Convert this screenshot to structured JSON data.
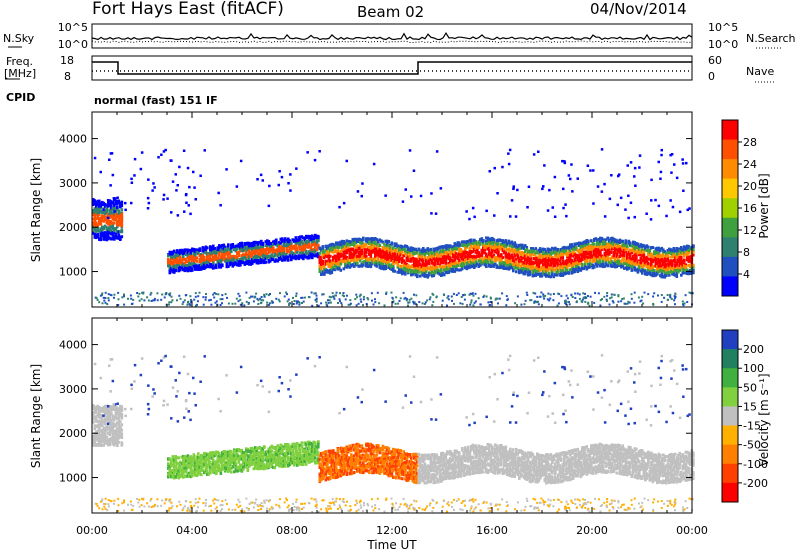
{
  "header": {
    "station": "Fort Hays East (fitACF)",
    "beam": "Beam 02",
    "date": "04/Nov/2014"
  },
  "top_panels": {
    "nsky_label": "N.Sky",
    "nsearch_label": "N.Search",
    "noise_ticks": [
      "10^5",
      "10^0"
    ],
    "freq_label_1": "Freq.",
    "freq_label_2": "[MHz]",
    "freq_ticks": [
      "18",
      "8"
    ],
    "nave_label": "Nave",
    "nave_ticks": [
      "60",
      "0"
    ],
    "cpid_label": "CPID",
    "cpid_text": "normal (fast) 151 IF"
  },
  "chart_data": [
    {
      "type": "heatmap",
      "name": "power",
      "ylabel": "Slant Range [km]",
      "yticks": [
        1000,
        2000,
        3000,
        4000
      ],
      "ylim": [
        200,
        4600
      ],
      "xticks": [
        "00:00",
        "04:00",
        "08:00",
        "12:00",
        "16:00",
        "20:00",
        "00:00"
      ],
      "xlim_hours": [
        0,
        24
      ],
      "colorbar": {
        "label": "Power [dB]",
        "ticks": [
          "28",
          "24",
          "20",
          "16",
          "12",
          "8",
          "4"
        ],
        "colors": [
          "#ff0000",
          "#ff5000",
          "#ff8c00",
          "#ffc800",
          "#a0d000",
          "#40a040",
          "#308070",
          "#2050c0",
          "#0000ff"
        ]
      }
    },
    {
      "type": "heatmap",
      "name": "velocity",
      "ylabel": "Slant Range [km]",
      "yticks": [
        1000,
        2000,
        3000,
        4000
      ],
      "ylim": [
        200,
        4600
      ],
      "xticks": [
        "00:00",
        "04:00",
        "08:00",
        "12:00",
        "16:00",
        "20:00",
        "00:00"
      ],
      "xlim_hours": [
        0,
        24
      ],
      "xlabel": "Time UT",
      "colorbar": {
        "label": "Velocity [m s⁻¹]",
        "ticks": [
          "200",
          "100",
          "50",
          "15",
          "-15",
          "-50",
          "-100",
          "-200"
        ],
        "colors": [
          "#2040c0",
          "#208060",
          "#40b040",
          "#80d040",
          "#c0c0c0",
          "#ffb000",
          "#ff8000",
          "#ff4000",
          "#ff0000"
        ]
      }
    }
  ]
}
